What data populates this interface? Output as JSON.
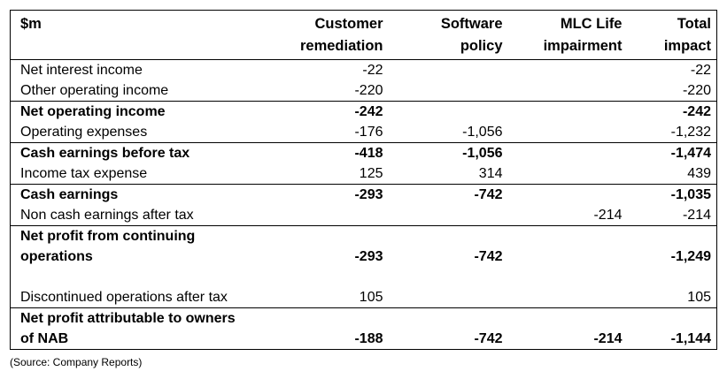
{
  "table": {
    "headers": {
      "label": "$m",
      "customer_remediation": [
        "Customer",
        "remediation"
      ],
      "software_policy": [
        "Software",
        "policy"
      ],
      "mlc_life": [
        "MLC Life",
        "impairment"
      ],
      "total": [
        "Total",
        "impact"
      ]
    },
    "rows": [
      {
        "label": "Net interest income",
        "customer": "-22",
        "software": "",
        "mlc": "",
        "total": "-22",
        "bold": false
      },
      {
        "label": "Other operating income",
        "customer": "-220",
        "software": "",
        "mlc": "",
        "total": "-220",
        "bold": false
      },
      {
        "label": "Net operating income",
        "customer": "-242",
        "software": "",
        "mlc": "",
        "total": "-242",
        "bold": true
      },
      {
        "label": "Operating expenses",
        "customer": "-176",
        "software": "-1,056",
        "mlc": "",
        "total": "-1,232",
        "bold": false
      },
      {
        "label": "Cash earnings before tax",
        "customer": "-418",
        "software": "-1,056",
        "mlc": "",
        "total": "-1,474",
        "bold": true
      },
      {
        "label": "Income tax expense",
        "customer": "125",
        "software": "314",
        "mlc": "",
        "total": "439",
        "bold": false
      },
      {
        "label": "Cash earnings",
        "customer": "-293",
        "software": "-742",
        "mlc": "",
        "total": "-1,035",
        "bold": true
      },
      {
        "label": "Non cash earnings after tax",
        "customer": "",
        "software": "",
        "mlc": "-214",
        "total": "-214",
        "bold": false
      },
      {
        "label_lines": [
          "Net profit from continuing",
          "operations"
        ],
        "customer": "-293",
        "software": "-742",
        "mlc": "",
        "total": "-1,249",
        "bold": true
      },
      {
        "label": "Discontinued operations after tax",
        "customer": "105",
        "software": "",
        "mlc": "",
        "total": "105",
        "bold": false
      },
      {
        "label_lines": [
          "Net profit attributable to owners",
          "of NAB"
        ],
        "customer": "-188",
        "software": "-742",
        "mlc": "-214",
        "total": "-1,144",
        "bold": true
      }
    ]
  },
  "source_note": "(Source: Company Reports)"
}
